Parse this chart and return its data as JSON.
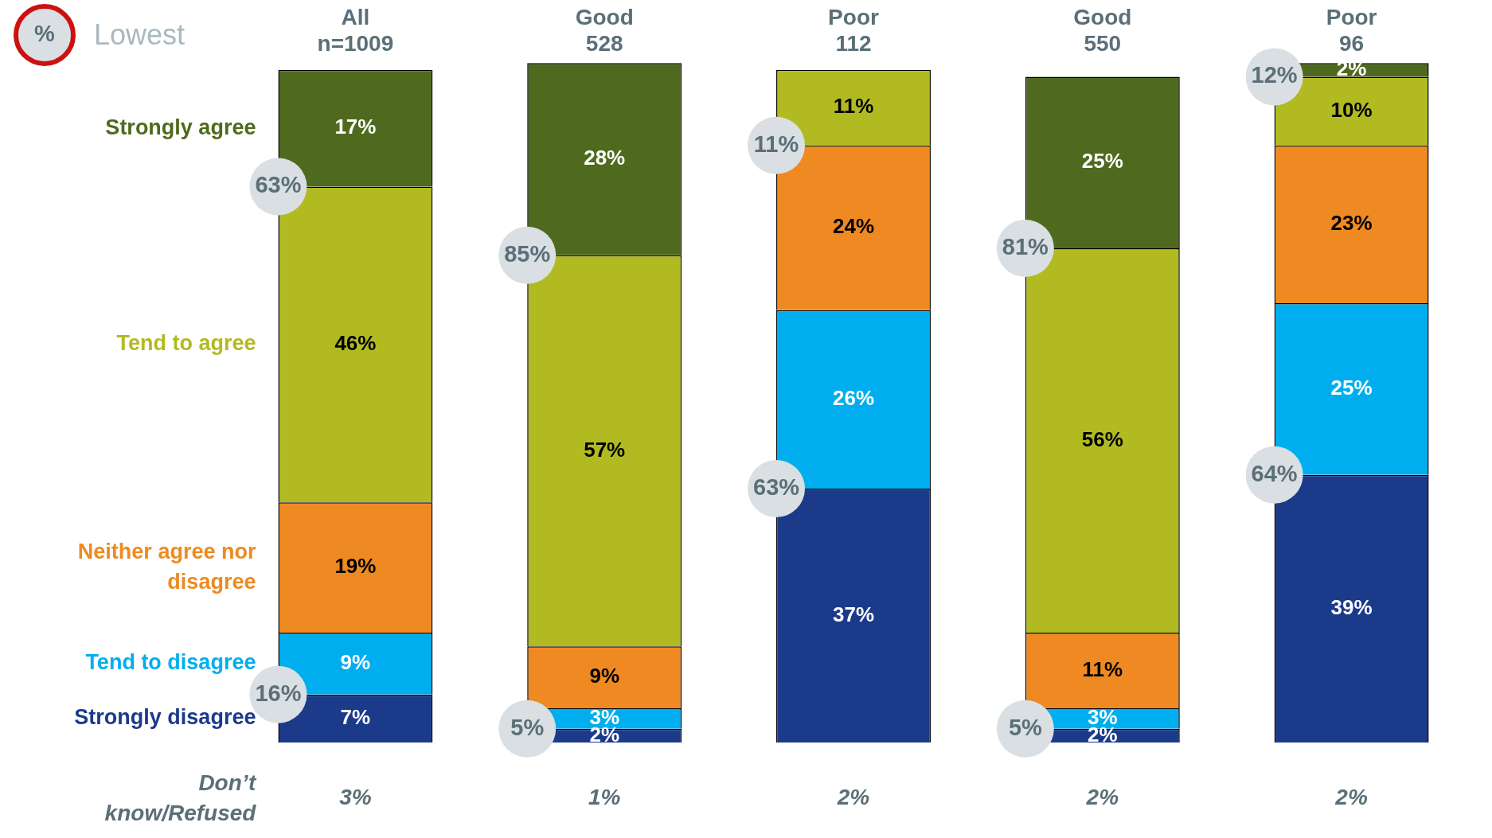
{
  "chart_data": {
    "type": "bar",
    "stacked": true,
    "legend": false,
    "grid": false,
    "categories": [
      "All\nn=1009",
      "Good\n528",
      "Poor\n112",
      "Good\n550",
      "Poor\n96"
    ],
    "series": [
      {
        "name": "Strongly disagree",
        "color": "#1c3a8a",
        "values": [
          7,
          2,
          37,
          2,
          39
        ],
        "value_labels": [
          "7%",
          "2%",
          "37%",
          "2%",
          "39%"
        ]
      },
      {
        "name": "Tend to disagree",
        "color": "#00aeef",
        "values": [
          9,
          3,
          26,
          3,
          25
        ],
        "value_labels": [
          "9%",
          "3%",
          "26%",
          "3%",
          "25%"
        ]
      },
      {
        "name": "Neither agree nor disagree",
        "color": "#ee8a21",
        "values": [
          19,
          9,
          24,
          11,
          23
        ],
        "value_labels": [
          "19%",
          "9%",
          "24%",
          "11%",
          "23%"
        ]
      },
      {
        "name": "Tend to agree",
        "color": "#b1bb21",
        "values": [
          46,
          57,
          11,
          56,
          10
        ],
        "value_labels": [
          "46%",
          "57%",
          "11%",
          "56%",
          "10%"
        ]
      },
      {
        "name": "Strongly agree",
        "color": "#4f6a1e",
        "values": [
          17,
          28,
          null,
          25,
          2
        ],
        "value_labels": [
          "17%",
          "28%",
          null,
          "25%",
          "2%"
        ]
      }
    ],
    "annotations": [
      "%",
      "Lowest",
      "Don’t know/Refused",
      "3%",
      "1%",
      "2%",
      "2%",
      "2%",
      {
        "text": "63%",
        "x": "All\nn=1009",
        "y": 81
      },
      {
        "text": "16%",
        "x": "All\nn=1009",
        "y": 7
      },
      {
        "text": "85%",
        "x": "Good\n528",
        "y": 71
      },
      {
        "text": "5%",
        "x": "Good\n528",
        "y": 2
      },
      {
        "text": "11%",
        "x": "Poor\n112",
        "y": 87
      },
      {
        "text": "63%",
        "x": "Poor\n112",
        "y": 37
      },
      {
        "text": "81%",
        "x": "Good\n550",
        "y": 72
      },
      {
        "text": "5%",
        "x": "Good\n550",
        "y": 2
      },
      {
        "text": "12%",
        "x": "Poor\n96",
        "y": 97
      },
      {
        "text": "64%",
        "x": "Poor\n96",
        "y": 39
      }
    ]
  }
}
